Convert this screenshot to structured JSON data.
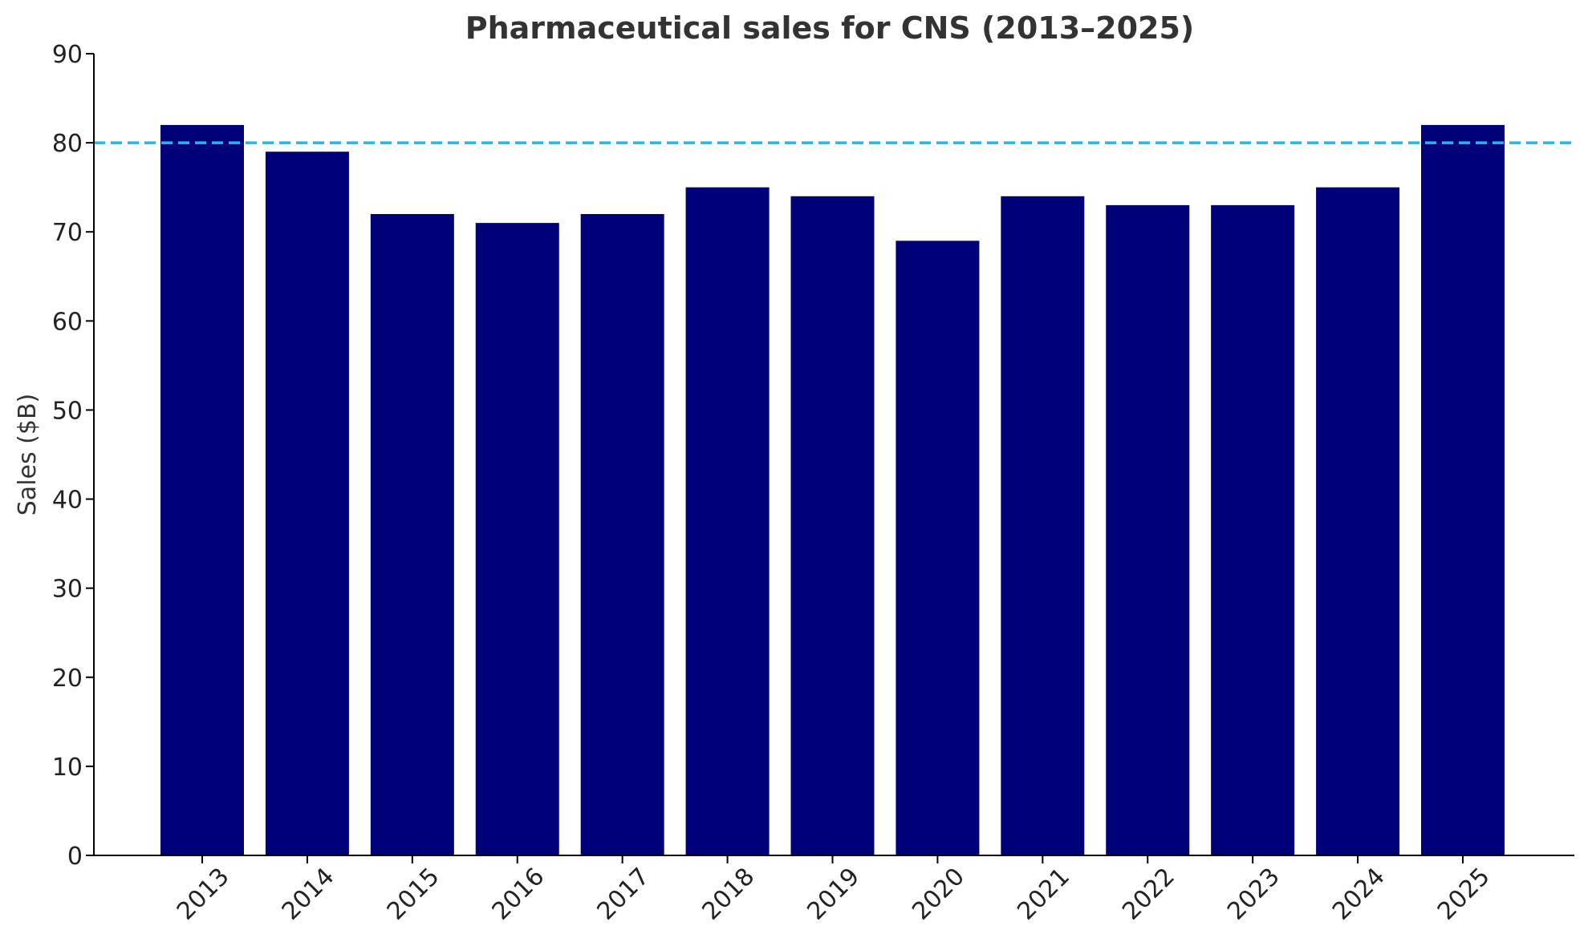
{
  "chart_data": {
    "type": "bar",
    "title": "Pharmaceutical sales for CNS (2013–2025)",
    "xlabel": "",
    "ylabel": "Sales ($B)",
    "categories": [
      "2013",
      "2014",
      "2015",
      "2016",
      "2017",
      "2018",
      "2019",
      "2020",
      "2021",
      "2022",
      "2023",
      "2024",
      "2025"
    ],
    "values": [
      82,
      79,
      72,
      71,
      72,
      75,
      74,
      69,
      74,
      73,
      73,
      75,
      82
    ],
    "ylim": [
      0,
      90
    ],
    "yticks": [
      0,
      10,
      20,
      30,
      40,
      50,
      60,
      70,
      80,
      90
    ],
    "reference_line": {
      "value": 80,
      "style": "dashed",
      "color": "#1ebbe8"
    },
    "bar_color": "#000078",
    "grid": false,
    "legend": "none"
  }
}
